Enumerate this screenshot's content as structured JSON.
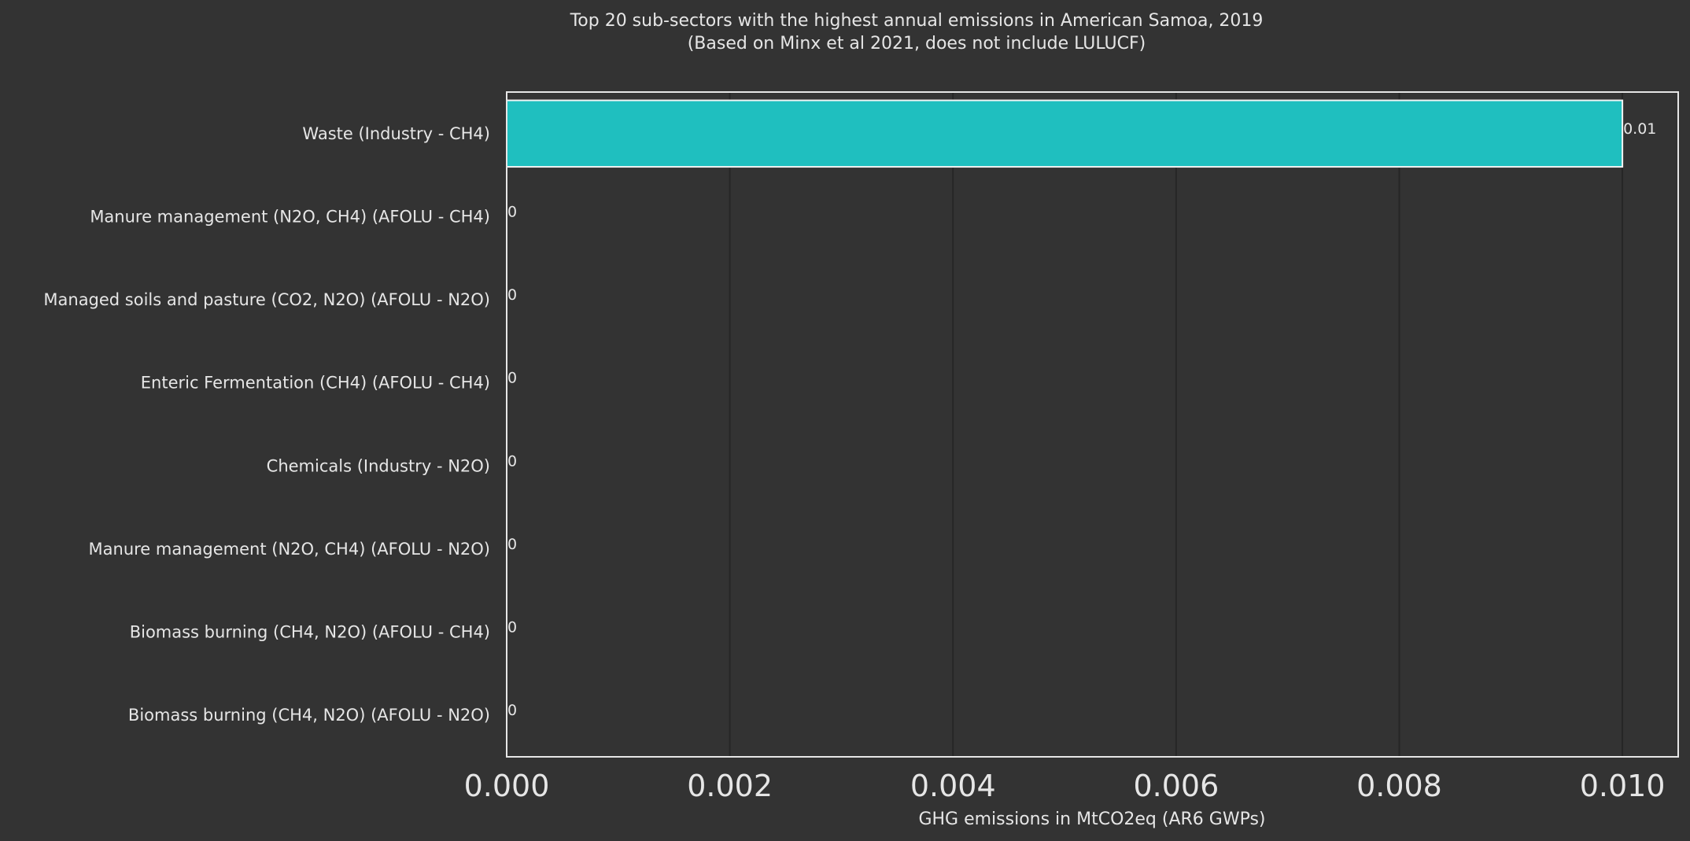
{
  "chart_data": {
    "type": "bar",
    "orientation": "horizontal",
    "title": "Top 20 sub-sectors with the highest annual emissions in American Samoa, 2019",
    "subtitle": "(Based on Minx et al 2021, does not include LULUCF)",
    "xlabel": "GHG emissions in MtCO2eq (AR6 GWPs)",
    "ylabel": "",
    "xlim": [
      0,
      0.0105
    ],
    "xticks": [
      0,
      0.002,
      0.004,
      0.006,
      0.008,
      0.01
    ],
    "xtick_labels": [
      "0.000",
      "0.002",
      "0.004",
      "0.006",
      "0.008",
      "0.010"
    ],
    "grid": true,
    "bar_color": "#1fbfbf",
    "categories": [
      "Waste (Industry - CH4)",
      "Manure management (N2O, CH4) (AFOLU - CH4)",
      "Managed soils and pasture (CO2, N2O) (AFOLU - N2O)",
      "Enteric Fermentation (CH4) (AFOLU - CH4)",
      "Chemicals (Industry - N2O)",
      "Manure management (N2O, CH4) (AFOLU - N2O)",
      "Biomass burning (CH4, N2O) (AFOLU - CH4)",
      "Biomass burning (CH4, N2O) (AFOLU - N2O)"
    ],
    "values": [
      0.01,
      0,
      0,
      0,
      0,
      0,
      0,
      0
    ],
    "value_labels": [
      "0.01",
      "0",
      "0",
      "0",
      "0",
      "0",
      "0",
      "0"
    ]
  }
}
